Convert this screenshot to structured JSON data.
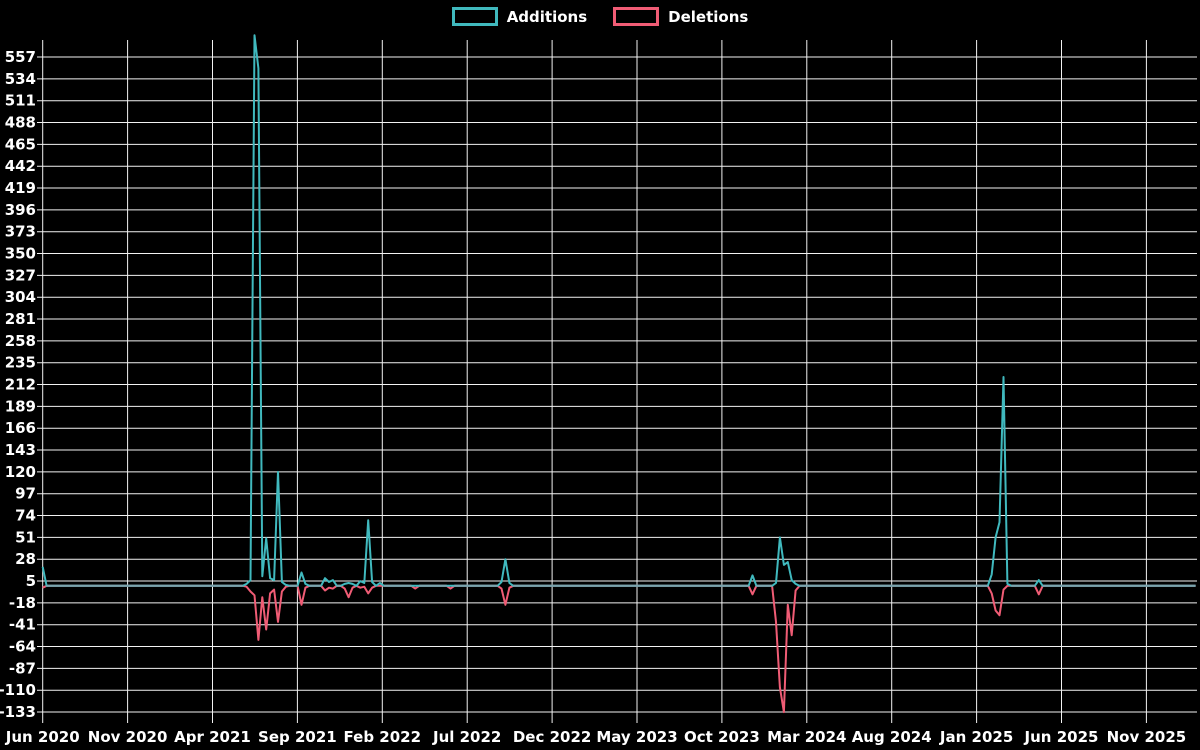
{
  "page": {
    "background_color": "#000000",
    "grid_color": "#f2f2f2",
    "baseline_blend_color": "#7ba3ad"
  },
  "legend": {
    "additions_label": "Additions",
    "deletions_label": "Deletions"
  },
  "chart_data": {
    "type": "line",
    "title": "",
    "legend": {
      "position": "top-center",
      "entries": [
        {
          "label": "Additions",
          "color": "#40b9be"
        },
        {
          "label": "Deletions",
          "color": "#f05c75"
        }
      ]
    },
    "x": {
      "unit": "weeks",
      "weeks_total": 295,
      "tick_interval_months": 5,
      "tick_labels": [
        "Jun 2020",
        "Nov 2020",
        "Apr 2021",
        "Sep 2021",
        "Feb 2022",
        "Jul 2022",
        "Dec 2022",
        "May 2023",
        "Oct 2023",
        "Mar 2024",
        "Aug 2024",
        "Jan 2025",
        "Jun 2025",
        "Nov 2025"
      ]
    },
    "y": {
      "tick_step": 23,
      "min": -133,
      "max": 580,
      "grid": true,
      "tick_labels": [
        557,
        534,
        511,
        488,
        465,
        442,
        419,
        396,
        373,
        350,
        327,
        304,
        281,
        258,
        235,
        212,
        189,
        166,
        143,
        120,
        97,
        74,
        51,
        28,
        5,
        -18,
        -41,
        -64,
        -87,
        -110,
        -133
      ]
    },
    "series": [
      {
        "name": "Additions",
        "color": "#40b9be",
        "default_value": 0,
        "points": {
          "0": 20,
          "52": 2,
          "53": 6,
          "54": 580,
          "55": 545,
          "56": 10,
          "57": 50,
          "58": 8,
          "59": 6,
          "60": 120,
          "61": 4,
          "62": 1,
          "66": 14,
          "67": 2,
          "72": 8,
          "73": 4,
          "74": 6,
          "77": 2,
          "78": 3,
          "79": 2,
          "81": 5,
          "82": 3,
          "83": 69,
          "84": 4,
          "86": 3,
          "117": 4,
          "118": 28,
          "119": 3,
          "181": 11,
          "187": 3,
          "188": 51,
          "189": 22,
          "190": 25,
          "191": 6,
          "192": 2,
          "242": 12,
          "243": 51,
          "244": 67,
          "245": 220,
          "246": 2,
          "254": 6
        }
      },
      {
        "name": "Deletions",
        "color": "#f05c75",
        "default_value": 0,
        "points": {
          "0": -2,
          "52": -1,
          "53": -6,
          "54": -10,
          "55": -57,
          "56": -12,
          "57": -46,
          "58": -8,
          "59": -4,
          "60": -38,
          "61": -6,
          "62": -1,
          "66": -20,
          "67": -2,
          "72": -5,
          "73": -2,
          "74": -3,
          "77": -3,
          "78": -12,
          "79": -2,
          "81": -2,
          "82": -1,
          "83": -8,
          "84": -2,
          "95": -3,
          "104": -3,
          "117": -3,
          "118": -20,
          "119": -2,
          "181": -9,
          "187": -38,
          "188": -107,
          "189": -133,
          "190": -20,
          "191": -52,
          "192": -5,
          "242": -8,
          "243": -26,
          "244": -31,
          "245": -4,
          "254": -9
        }
      }
    ]
  }
}
